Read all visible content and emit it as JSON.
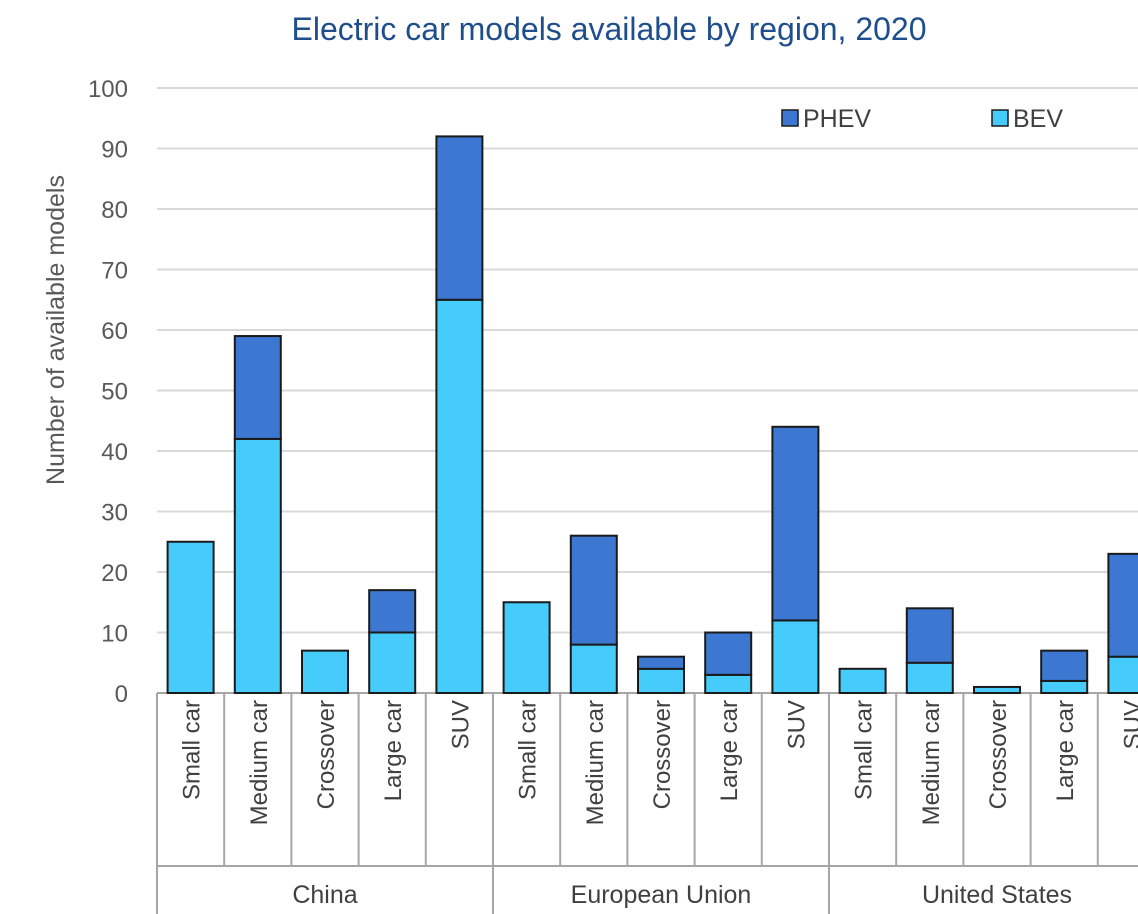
{
  "chart_data": {
    "type": "bar",
    "stacked": true,
    "title": "Electric car models available by region, 2020",
    "ylabel": "Number of available models",
    "xlabel": "",
    "ylim": [
      0,
      100
    ],
    "yticks": [
      0,
      10,
      20,
      30,
      40,
      50,
      60,
      70,
      80,
      90,
      100
    ],
    "grid": true,
    "legend_position": "top-right",
    "groups": [
      "China",
      "European Union",
      "United States"
    ],
    "categories": [
      "Small car",
      "Medium car",
      "Crossover",
      "Large car",
      "SUV"
    ],
    "series": [
      {
        "name": "BEV",
        "color": "#45ccfa",
        "values": [
          [
            25,
            42,
            7,
            10,
            65
          ],
          [
            15,
            8,
            4,
            3,
            12
          ],
          [
            4,
            5,
            1,
            2,
            6
          ]
        ]
      },
      {
        "name": "PHEV",
        "color": "#3c78d2",
        "values": [
          [
            0,
            17,
            0,
            7,
            27
          ],
          [
            0,
            18,
            2,
            7,
            32
          ],
          [
            0,
            9,
            0,
            5,
            17
          ]
        ]
      }
    ],
    "legend": [
      {
        "name": "PHEV",
        "color": "#3c78d2"
      },
      {
        "name": "BEV",
        "color": "#45ccfa"
      }
    ]
  }
}
